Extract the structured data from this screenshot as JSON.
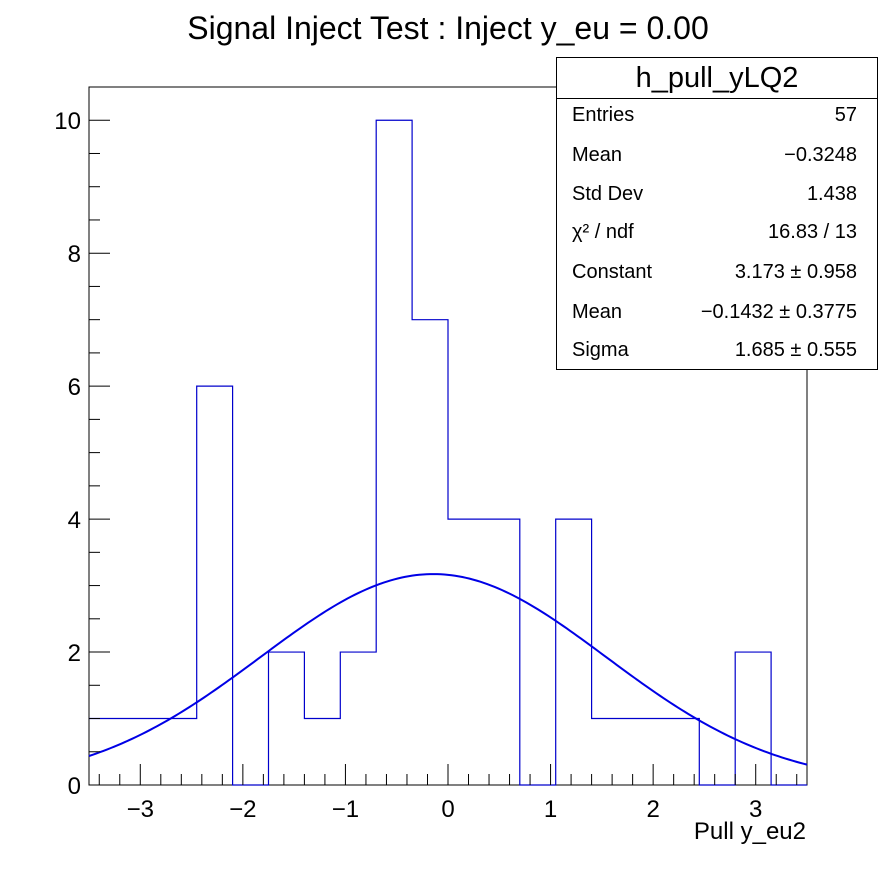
{
  "chart_data": {
    "type": "histogram",
    "title": "Signal Inject Test : Inject y_eu = 0.00",
    "xlabel": "Pull y_eu2",
    "ylabel": "",
    "xlim": [
      -3.5,
      3.5
    ],
    "ylim": [
      0,
      10.5
    ],
    "bin_edges": [
      -3.5,
      -3.15,
      -2.8,
      -2.45,
      -2.1,
      -1.75,
      -1.4,
      -1.05,
      -0.7,
      -0.35,
      0.0,
      0.35,
      0.7,
      1.05,
      1.4,
      1.75,
      2.1,
      2.45,
      2.8,
      3.15,
      3.5
    ],
    "counts": [
      1,
      1,
      1,
      6,
      0,
      2,
      1,
      2,
      10,
      7,
      4,
      4,
      0,
      4,
      1,
      1,
      1,
      0,
      2,
      0
    ],
    "x_ticks": [
      -3,
      -2,
      -1,
      0,
      1,
      2,
      3
    ],
    "x_tick_labels": [
      "−3",
      "−2",
      "−1",
      "0",
      "1",
      "2",
      "3"
    ],
    "y_ticks": [
      0,
      2,
      4,
      6,
      8,
      10
    ],
    "y_tick_labels": [
      "0",
      "2",
      "4",
      "6",
      "8",
      "10"
    ],
    "fit": {
      "function": "gaus",
      "constant": 3.173,
      "mean": -0.1432,
      "sigma": 1.685
    },
    "colors": {
      "histogram": "#0000cc",
      "fit": "#0000e6",
      "axes": "#000000"
    },
    "legend_placement": "top-right",
    "grid": false
  },
  "stats_box": {
    "title": "h_pull_yLQ2",
    "rows": [
      {
        "label": "Entries",
        "value": "57"
      },
      {
        "label": "Mean",
        "value": "−0.3248"
      },
      {
        "label": "Std Dev",
        "value": "1.438"
      },
      {
        "label": "χ² / ndf",
        "value": "16.83 / 13"
      },
      {
        "label": "Constant",
        "value": "3.173 ± 0.958"
      },
      {
        "label": "Mean",
        "value": "−0.1432 ± 0.3775"
      },
      {
        "label": "Sigma",
        "value": "1.685 ± 0.555"
      }
    ]
  }
}
